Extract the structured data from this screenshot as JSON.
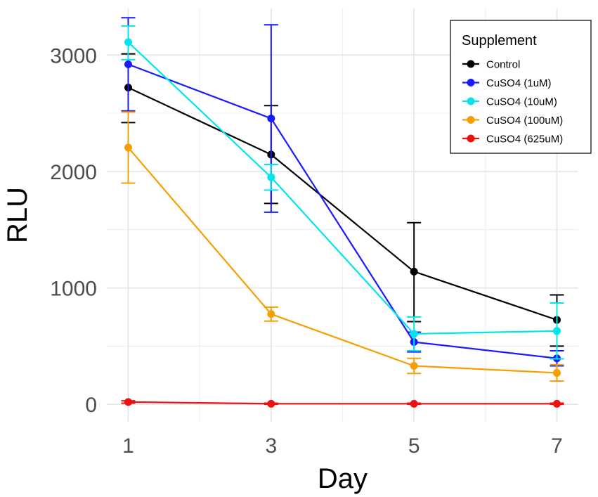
{
  "chart_data": {
    "type": "line",
    "title": "",
    "xlabel": "Day",
    "ylabel": "RLU",
    "x": [
      1,
      3,
      5,
      7
    ],
    "xticks": [
      "1",
      "3",
      "5",
      "7"
    ],
    "yticks": [
      "0",
      "1000",
      "2000",
      "3000"
    ],
    "xlim": [
      0.7,
      7.3
    ],
    "ylim": [
      -150,
      3400
    ],
    "grid": true,
    "legend_title": "Supplement",
    "legend_position": "top-right",
    "series": [
      {
        "name": "Control",
        "color": "#000000",
        "values": [
          2720,
          2145,
          1140,
          725
        ],
        "err_low": [
          2420,
          1725,
          710,
          500
        ],
        "err_high": [
          3010,
          2565,
          1560,
          940
        ]
      },
      {
        "name": "CuSO4 (1uM)",
        "color": "#1a1aff",
        "values": [
          2920,
          2455,
          535,
          395
        ],
        "err_low": [
          2520,
          1650,
          450,
          330
        ],
        "err_high": [
          3320,
          3260,
          620,
          460
        ]
      },
      {
        "name": "CuSO4 (10uM)",
        "color": "#00e5ee",
        "values": [
          3110,
          1950,
          605,
          630
        ],
        "err_low": [
          2960,
          1840,
          460,
          390
        ],
        "err_high": [
          3250,
          2060,
          750,
          870
        ]
      },
      {
        "name": "CuSO4 (100uM)",
        "color": "#f5a000",
        "values": [
          2205,
          775,
          330,
          270
        ],
        "err_low": [
          1900,
          715,
          265,
          200
        ],
        "err_high": [
          2510,
          835,
          395,
          340
        ]
      },
      {
        "name": "CuSO4 (625uM)",
        "color": "#ee1111",
        "values": [
          20,
          5,
          5,
          5
        ],
        "err_low": [
          10,
          0,
          0,
          0
        ],
        "err_high": [
          30,
          10,
          10,
          10
        ]
      }
    ]
  }
}
